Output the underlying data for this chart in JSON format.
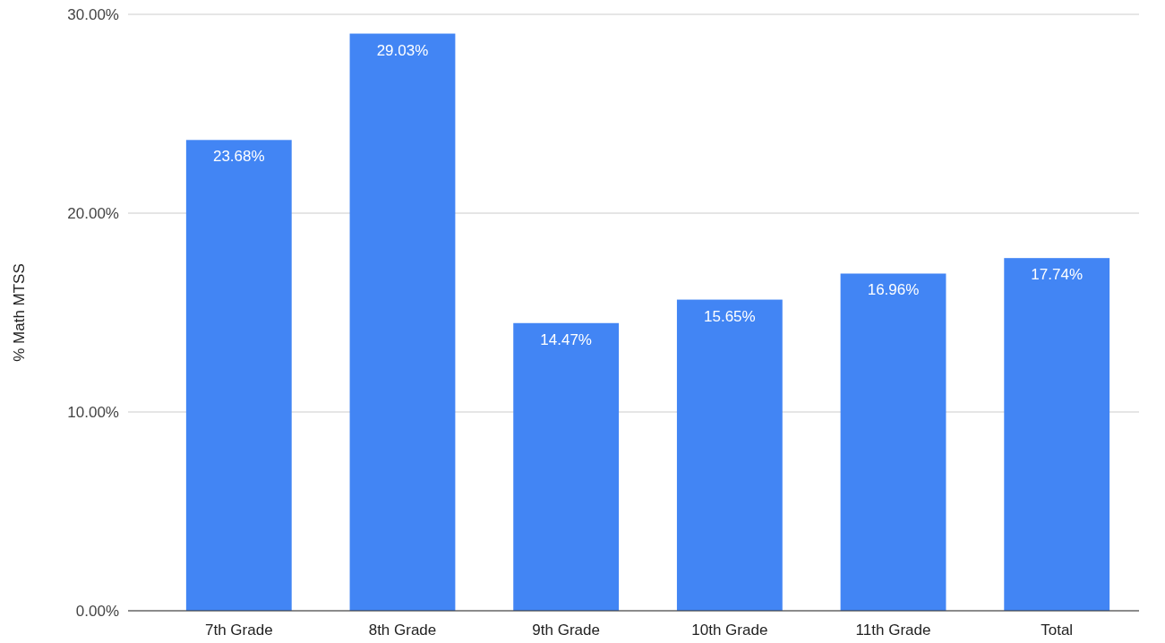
{
  "chart_data": {
    "type": "bar",
    "ylabel": "% Math MTSS",
    "categories": [
      "7th Grade",
      "8th Grade",
      "9th Grade",
      "10th Grade",
      "11th Grade",
      "Total"
    ],
    "values": [
      23.68,
      29.03,
      14.47,
      15.65,
      16.96,
      17.74
    ],
    "value_labels": [
      "23.68%",
      "29.03%",
      "14.47%",
      "15.65%",
      "16.96%",
      "17.74%"
    ],
    "color": "#4285f4",
    "ylim": [
      0,
      30
    ],
    "yticks": [
      {
        "value": 0,
        "label": "0.00%"
      },
      {
        "value": 10,
        "label": "10.00%"
      },
      {
        "value": 20,
        "label": "20.00%"
      },
      {
        "value": 30,
        "label": "30.00%"
      }
    ],
    "grid": "y"
  }
}
